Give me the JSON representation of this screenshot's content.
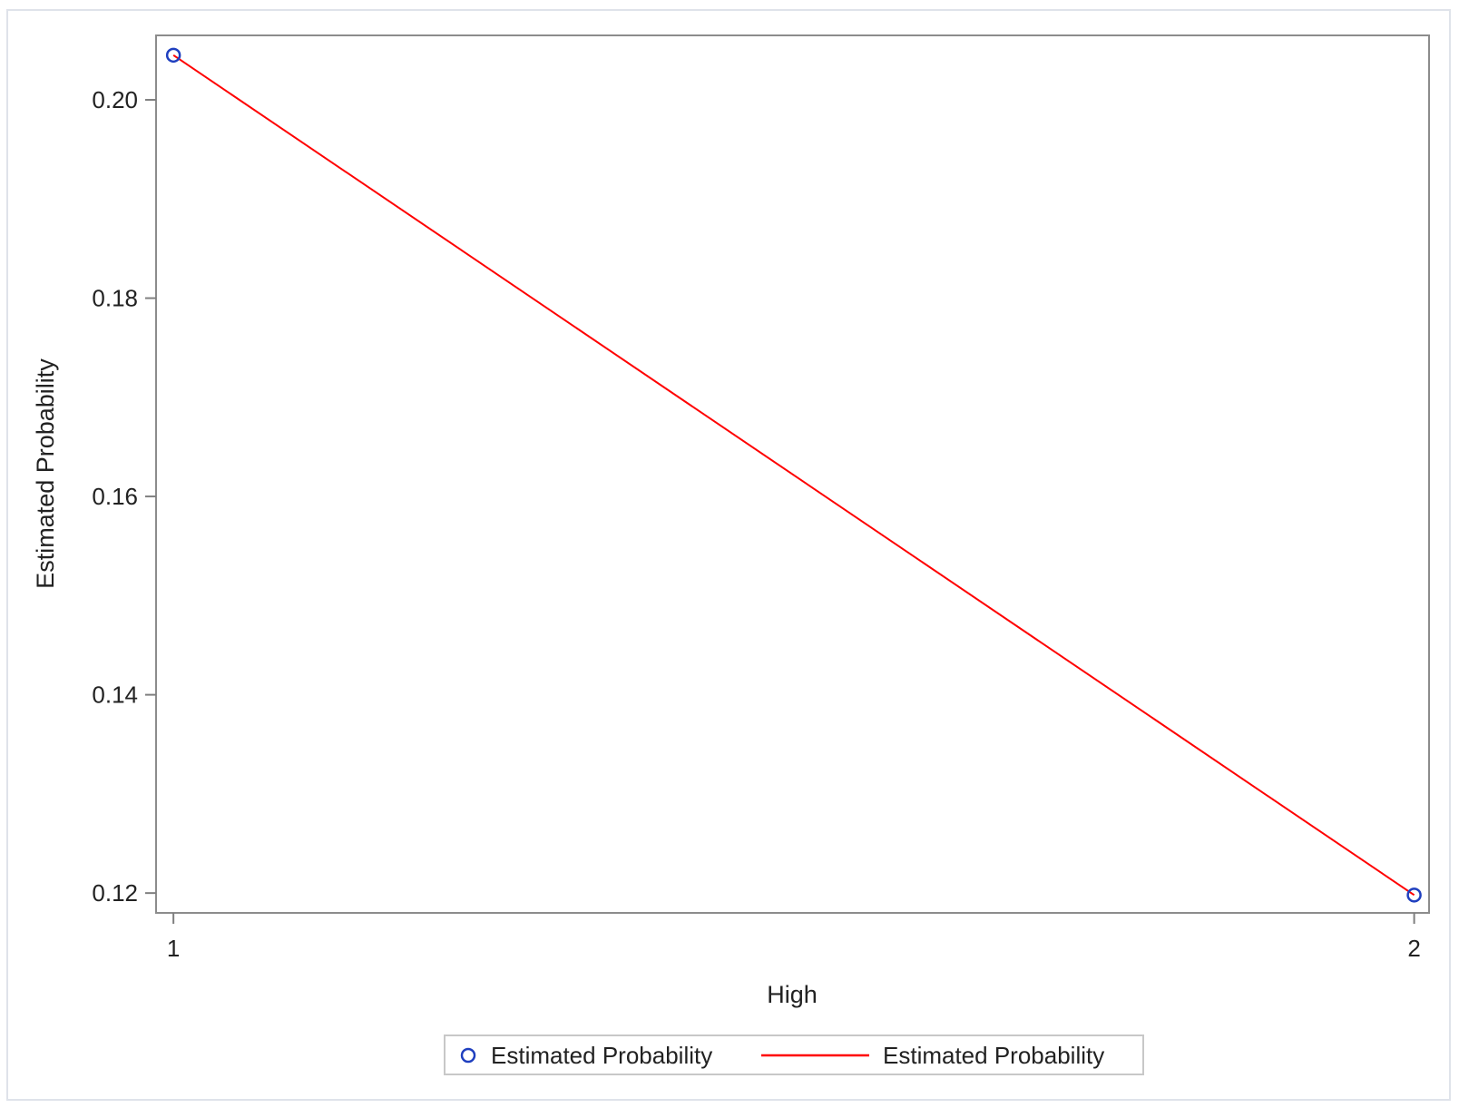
{
  "chart_data": {
    "type": "line",
    "xlabel": "High",
    "ylabel": "Estimated Probability",
    "xlim": [
      0.986,
      2.012
    ],
    "ylim": [
      0.118,
      0.2065
    ],
    "x_ticks": [
      1,
      2
    ],
    "x_tick_labels": [
      "1",
      "2"
    ],
    "y_ticks": [
      0.12,
      0.14,
      0.16,
      0.18,
      0.2
    ],
    "y_tick_labels": [
      "0.12",
      "0.14",
      "0.16",
      "0.18",
      "0.20"
    ],
    "grid": false,
    "legend_position": "bottom-center",
    "series": [
      {
        "name": "Estimated Probability",
        "kind": "scatter",
        "marker": "circle-open",
        "color": "#1f3fbf",
        "x": [
          1,
          2
        ],
        "y": [
          0.2045,
          0.1198
        ]
      },
      {
        "name": "Estimated Probability",
        "kind": "line",
        "color": "#ff0000",
        "x": [
          1,
          2
        ],
        "y": [
          0.2045,
          0.1198
        ]
      }
    ]
  },
  "colors": {
    "frame_border": "#dfe3ea",
    "axis": "#7f7f7f",
    "marker": "#1f3fbf",
    "line": "#ff0000"
  }
}
